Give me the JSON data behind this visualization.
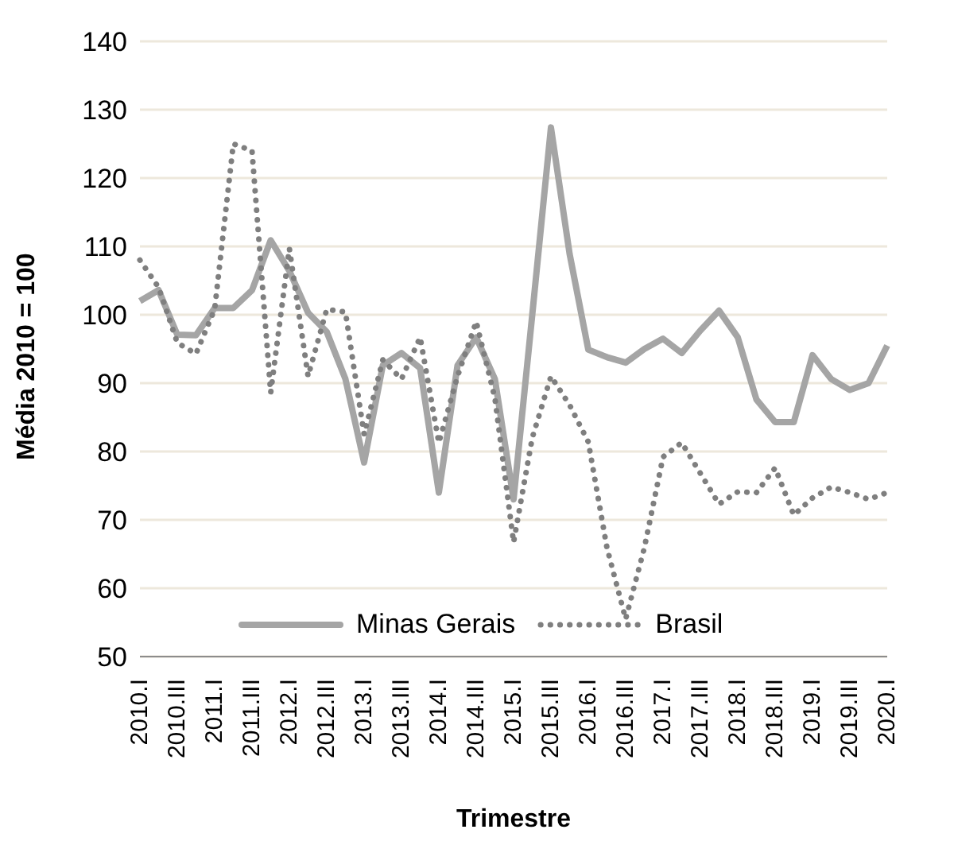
{
  "chart_data": {
    "type": "line",
    "xlabel": "Trimestre",
    "ylabel": "Média 2010 = 100",
    "categories": [
      "2010.I",
      null,
      "2010.III",
      null,
      "2011.I",
      null,
      "2011.III",
      null,
      "2012.I",
      null,
      "2012.III",
      null,
      "2013.I",
      null,
      "2013.III",
      null,
      "2014.I",
      null,
      "2014.III",
      null,
      "2015.I",
      null,
      "2015.III",
      null,
      "2016.I",
      null,
      "2016.III",
      null,
      "2017.I",
      null,
      "2017.III",
      null,
      "2018.I",
      null,
      "2018.III",
      null,
      "2019.I",
      null,
      "2019.III",
      null,
      "2020.I"
    ],
    "series": [
      {
        "name": "Minas Gerais",
        "color": "#a5a5a5",
        "line_style": "solid",
        "values": [
          102,
          103.6,
          97.1,
          97,
          101,
          101,
          103.6,
          110.9,
          106.4,
          100.3,
          97.5,
          90.6,
          78.4,
          92.6,
          94.4,
          92.2,
          74,
          92.6,
          96.7,
          90.6,
          73,
          100,
          127.4,
          108.9,
          94.9,
          93.8,
          93,
          95,
          96.5,
          94.4,
          97.7,
          100.6,
          96.7,
          87.6,
          84.3,
          84.3,
          94.1,
          90.6,
          89,
          90,
          95.5
        ]
      },
      {
        "name": "Brasil",
        "color": "#7f7f7f",
        "line_style": "dotted",
        "values": [
          108,
          104,
          95.9,
          94.3,
          100.8,
          125,
          124,
          88.6,
          109.7,
          91,
          100.8,
          100.4,
          82.5,
          93.4,
          90.6,
          96.7,
          81.3,
          91,
          99,
          87.8,
          66.7,
          82,
          91,
          86.8,
          81.4,
          65.9,
          55.5,
          65.9,
          79.2,
          81.3,
          76.8,
          72.3,
          74.1,
          74,
          77.6,
          70.7,
          73.2,
          74.8,
          74,
          73,
          74
        ]
      }
    ],
    "ylim": [
      50,
      140
    ],
    "yticks": [
      50,
      60,
      70,
      80,
      90,
      100,
      110,
      120,
      130,
      140
    ],
    "grid": "y",
    "legend": "bottom",
    "marker": "none"
  }
}
